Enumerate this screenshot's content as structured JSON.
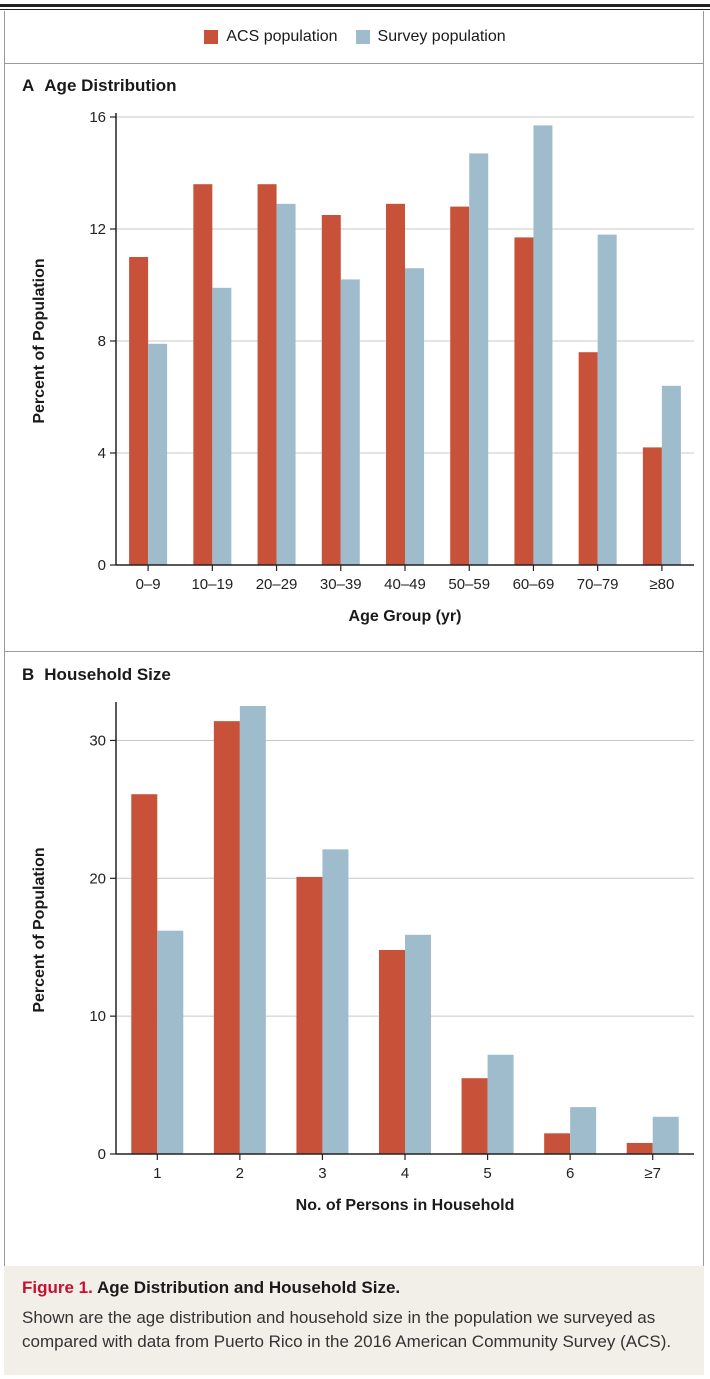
{
  "legend": {
    "acs_label": "ACS population",
    "survey_label": "Survey population"
  },
  "colors": {
    "acs": "#c8513a",
    "survey": "#9fbccc",
    "grid": "#c8c8c8",
    "axis": "#222222",
    "caption_bg": "#f2efe8",
    "caption_label": "#c8102e"
  },
  "panel_a": {
    "letter": "A",
    "title": "Age Distribution"
  },
  "panel_b": {
    "letter": "B",
    "title": "Household Size"
  },
  "chart_data": [
    {
      "type": "bar",
      "title": "Age Distribution",
      "xlabel": "Age Group (yr)",
      "ylabel": "Percent of Population",
      "ylim": [
        0,
        16
      ],
      "yticks": [
        0,
        4,
        8,
        12,
        16
      ],
      "grid": true,
      "legend": "top-center",
      "categories": [
        "0–9",
        "10–19",
        "20–29",
        "30–39",
        "40–49",
        "50–59",
        "60–69",
        "70–79",
        "≥80"
      ],
      "series": [
        {
          "name": "ACS population",
          "values": [
            11.0,
            13.6,
            13.6,
            12.5,
            12.9,
            12.8,
            11.7,
            7.6,
            4.2
          ]
        },
        {
          "name": "Survey population",
          "values": [
            7.9,
            9.9,
            12.9,
            10.2,
            10.6,
            14.7,
            15.7,
            11.8,
            6.4
          ]
        }
      ]
    },
    {
      "type": "bar",
      "title": "Household Size",
      "xlabel": "No. of Persons in Household",
      "ylabel": "Percent of Population",
      "ylim": [
        0,
        32.5
      ],
      "yticks": [
        0,
        10,
        20,
        30
      ],
      "grid": true,
      "categories": [
        "1",
        "2",
        "3",
        "4",
        "5",
        "6",
        "≥7"
      ],
      "series": [
        {
          "name": "ACS population",
          "values": [
            26.1,
            31.4,
            20.1,
            14.8,
            5.5,
            1.5,
            0.8
          ]
        },
        {
          "name": "Survey population",
          "values": [
            16.2,
            32.5,
            22.1,
            15.9,
            7.2,
            3.4,
            2.7
          ]
        }
      ]
    }
  ],
  "caption": {
    "label": "Figure 1.",
    "title": "Age Distribution and Household Size.",
    "body": "Shown are the age distribution and household size in the population we surveyed as compared with data from Puerto Rico in the 2016 American Community Survey (ACS)."
  }
}
